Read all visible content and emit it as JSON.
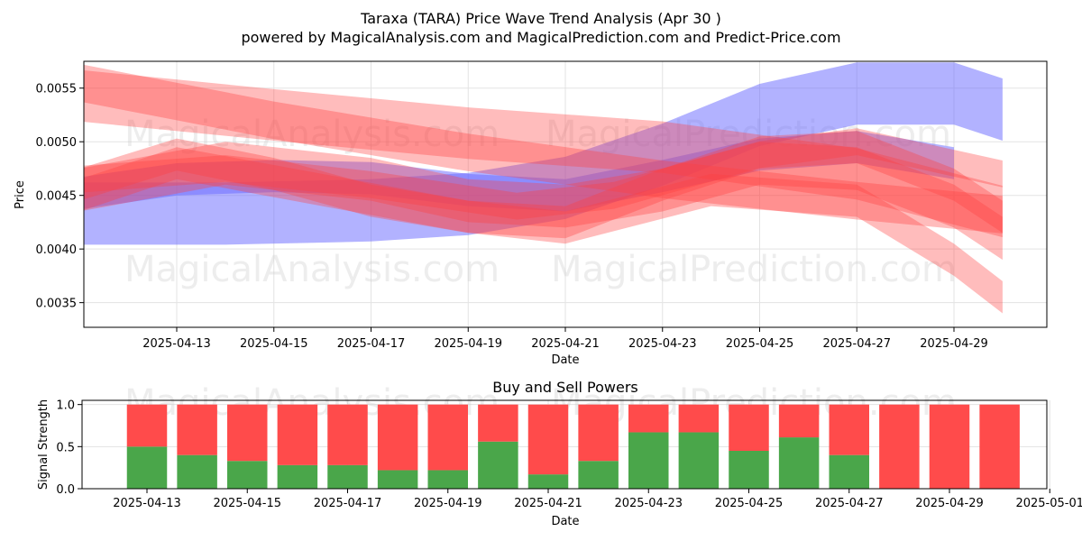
{
  "title": "Taraxa (TARA) Price Wave Trend Analysis (Apr 30 )",
  "subtitle": "powered by MagicalAnalysis.com and MagicalPrediction.com and Predict-Price.com",
  "watermarks": [
    "MagicalAnalysis.com",
    "MagicalPrediction.com"
  ],
  "colors": {
    "buy": "#4aa64a",
    "sell": "#ff4b4b",
    "band_red": "#ff4040",
    "band_blue": "#6666ff"
  },
  "chart_data": [
    {
      "type": "area",
      "name": "price-wave",
      "xlabel": "Date",
      "ylabel": "Price",
      "x_ticks": [
        "2025-04-13",
        "2025-04-15",
        "2025-04-17",
        "2025-04-19",
        "2025-04-21",
        "2025-04-23",
        "2025-04-25",
        "2025-04-27",
        "2025-04-29"
      ],
      "y_ticks": [
        "0.0035",
        "0.0040",
        "0.0045",
        "0.0050",
        "0.0055"
      ],
      "xlim": [
        "2025-04-11",
        "2025-04-30"
      ],
      "ylim": [
        0.00327,
        0.00575
      ],
      "grid": true,
      "bands": [
        {
          "color": "blue",
          "x": [
            "2025-04-11",
            "2025-04-14",
            "2025-04-17",
            "2025-04-19",
            "2025-04-21",
            "2025-04-23",
            "2025-04-25",
            "2025-04-27",
            "2025-04-29",
            "2025-04-30"
          ],
          "y": [
            0.00433,
            0.00433,
            0.00436,
            0.00442,
            0.00457,
            0.00488,
            0.00525,
            0.00545,
            0.00545,
            0.0053
          ],
          "w": 0.00058
        },
        {
          "color": "blue",
          "x": [
            "2025-04-11",
            "2025-04-13",
            "2025-04-15",
            "2025-04-17",
            "2025-04-19",
            "2025-04-21",
            "2025-04-23",
            "2025-04-25",
            "2025-04-27",
            "2025-04-29"
          ],
          "y": [
            0.00452,
            0.00465,
            0.00468,
            0.00466,
            0.00455,
            0.0045,
            0.00468,
            0.00488,
            0.00495,
            0.0048
          ],
          "w": 0.0003
        },
        {
          "color": "red",
          "x": [
            "2025-04-11",
            "2025-04-15",
            "2025-04-19",
            "2025-04-23",
            "2025-04-27",
            "2025-04-30"
          ],
          "y": [
            0.00543,
            0.00525,
            0.00508,
            0.00495,
            0.0047,
            0.00435
          ],
          "w": 0.00048
        },
        {
          "color": "red",
          "x": [
            "2025-04-11",
            "2025-04-15",
            "2025-04-19",
            "2025-04-23",
            "2025-04-27",
            "2025-04-30"
          ],
          "y": [
            0.00555,
            0.0052,
            0.0049,
            0.00465,
            0.00445,
            0.00432
          ],
          "w": 0.00035
        },
        {
          "color": "red",
          "x": [
            "2025-04-11",
            "2025-04-14",
            "2025-04-17",
            "2025-04-19",
            "2025-04-21",
            "2025-04-23",
            "2025-04-25",
            "2025-04-27",
            "2025-04-29",
            "2025-04-30"
          ],
          "y": [
            0.00455,
            0.0048,
            0.00465,
            0.00445,
            0.0044,
            0.00455,
            0.0048,
            0.00475,
            0.0044,
            0.0041
          ],
          "w": 0.0004
        },
        {
          "color": "red",
          "x": [
            "2025-04-11",
            "2025-04-13",
            "2025-04-15",
            "2025-04-17",
            "2025-04-19",
            "2025-04-21",
            "2025-04-23",
            "2025-04-25",
            "2025-04-27",
            "2025-04-29",
            "2025-04-30"
          ],
          "y": [
            0.0046,
            0.00488,
            0.0047,
            0.00445,
            0.0043,
            0.00425,
            0.0046,
            0.0049,
            0.00495,
            0.0046,
            0.0043
          ],
          "w": 0.0003
        },
        {
          "color": "red",
          "x": [
            "2025-04-11",
            "2025-04-13",
            "2025-04-16",
            "2025-04-19",
            "2025-04-21",
            "2025-04-24",
            "2025-04-27",
            "2025-04-29",
            "2025-04-30"
          ],
          "y": [
            0.0045,
            0.0048,
            0.00455,
            0.0043,
            0.0042,
            0.00455,
            0.00445,
            0.0039,
            0.00355
          ],
          "w": 0.0003
        },
        {
          "color": "red",
          "x": [
            "2025-04-11",
            "2025-04-14",
            "2025-04-17",
            "2025-04-20",
            "2025-04-22",
            "2025-04-25",
            "2025-04-27",
            "2025-04-30"
          ],
          "y": [
            0.00465,
            0.00475,
            0.0046,
            0.0044,
            0.0045,
            0.00488,
            0.005,
            0.0047
          ],
          "w": 0.00025
        }
      ]
    },
    {
      "type": "bar",
      "name": "buy-sell-powers",
      "title": "Buy and Sell Powers",
      "xlabel": "Date",
      "ylabel": "Signal Strength",
      "x_ticks": [
        "2025-04-13",
        "2025-04-15",
        "2025-04-17",
        "2025-04-19",
        "2025-04-21",
        "2025-04-23",
        "2025-04-25",
        "2025-04-27",
        "2025-04-29",
        "2025-05-01"
      ],
      "y_ticks": [
        "0.0",
        "0.5",
        "1.0"
      ],
      "ylim": [
        0,
        1.05
      ],
      "categories": [
        "2025-04-13",
        "2025-04-14",
        "2025-04-15",
        "2025-04-16",
        "2025-04-17",
        "2025-04-18",
        "2025-04-19",
        "2025-04-20",
        "2025-04-21",
        "2025-04-22",
        "2025-04-23",
        "2025-04-24",
        "2025-04-25",
        "2025-04-26",
        "2025-04-27",
        "2025-04-28",
        "2025-04-29",
        "2025-04-30"
      ],
      "buy": [
        0.5,
        0.4,
        0.33,
        0.28,
        0.28,
        0.22,
        0.22,
        0.56,
        0.17,
        0.33,
        0.67,
        0.67,
        0.45,
        0.61,
        0.4,
        0.0,
        0.0,
        0.0
      ],
      "sell": [
        0.5,
        0.6,
        0.67,
        0.72,
        0.72,
        0.78,
        0.78,
        0.44,
        0.83,
        0.67,
        0.33,
        0.33,
        0.55,
        0.39,
        0.6,
        1.0,
        1.0,
        1.0
      ]
    }
  ]
}
